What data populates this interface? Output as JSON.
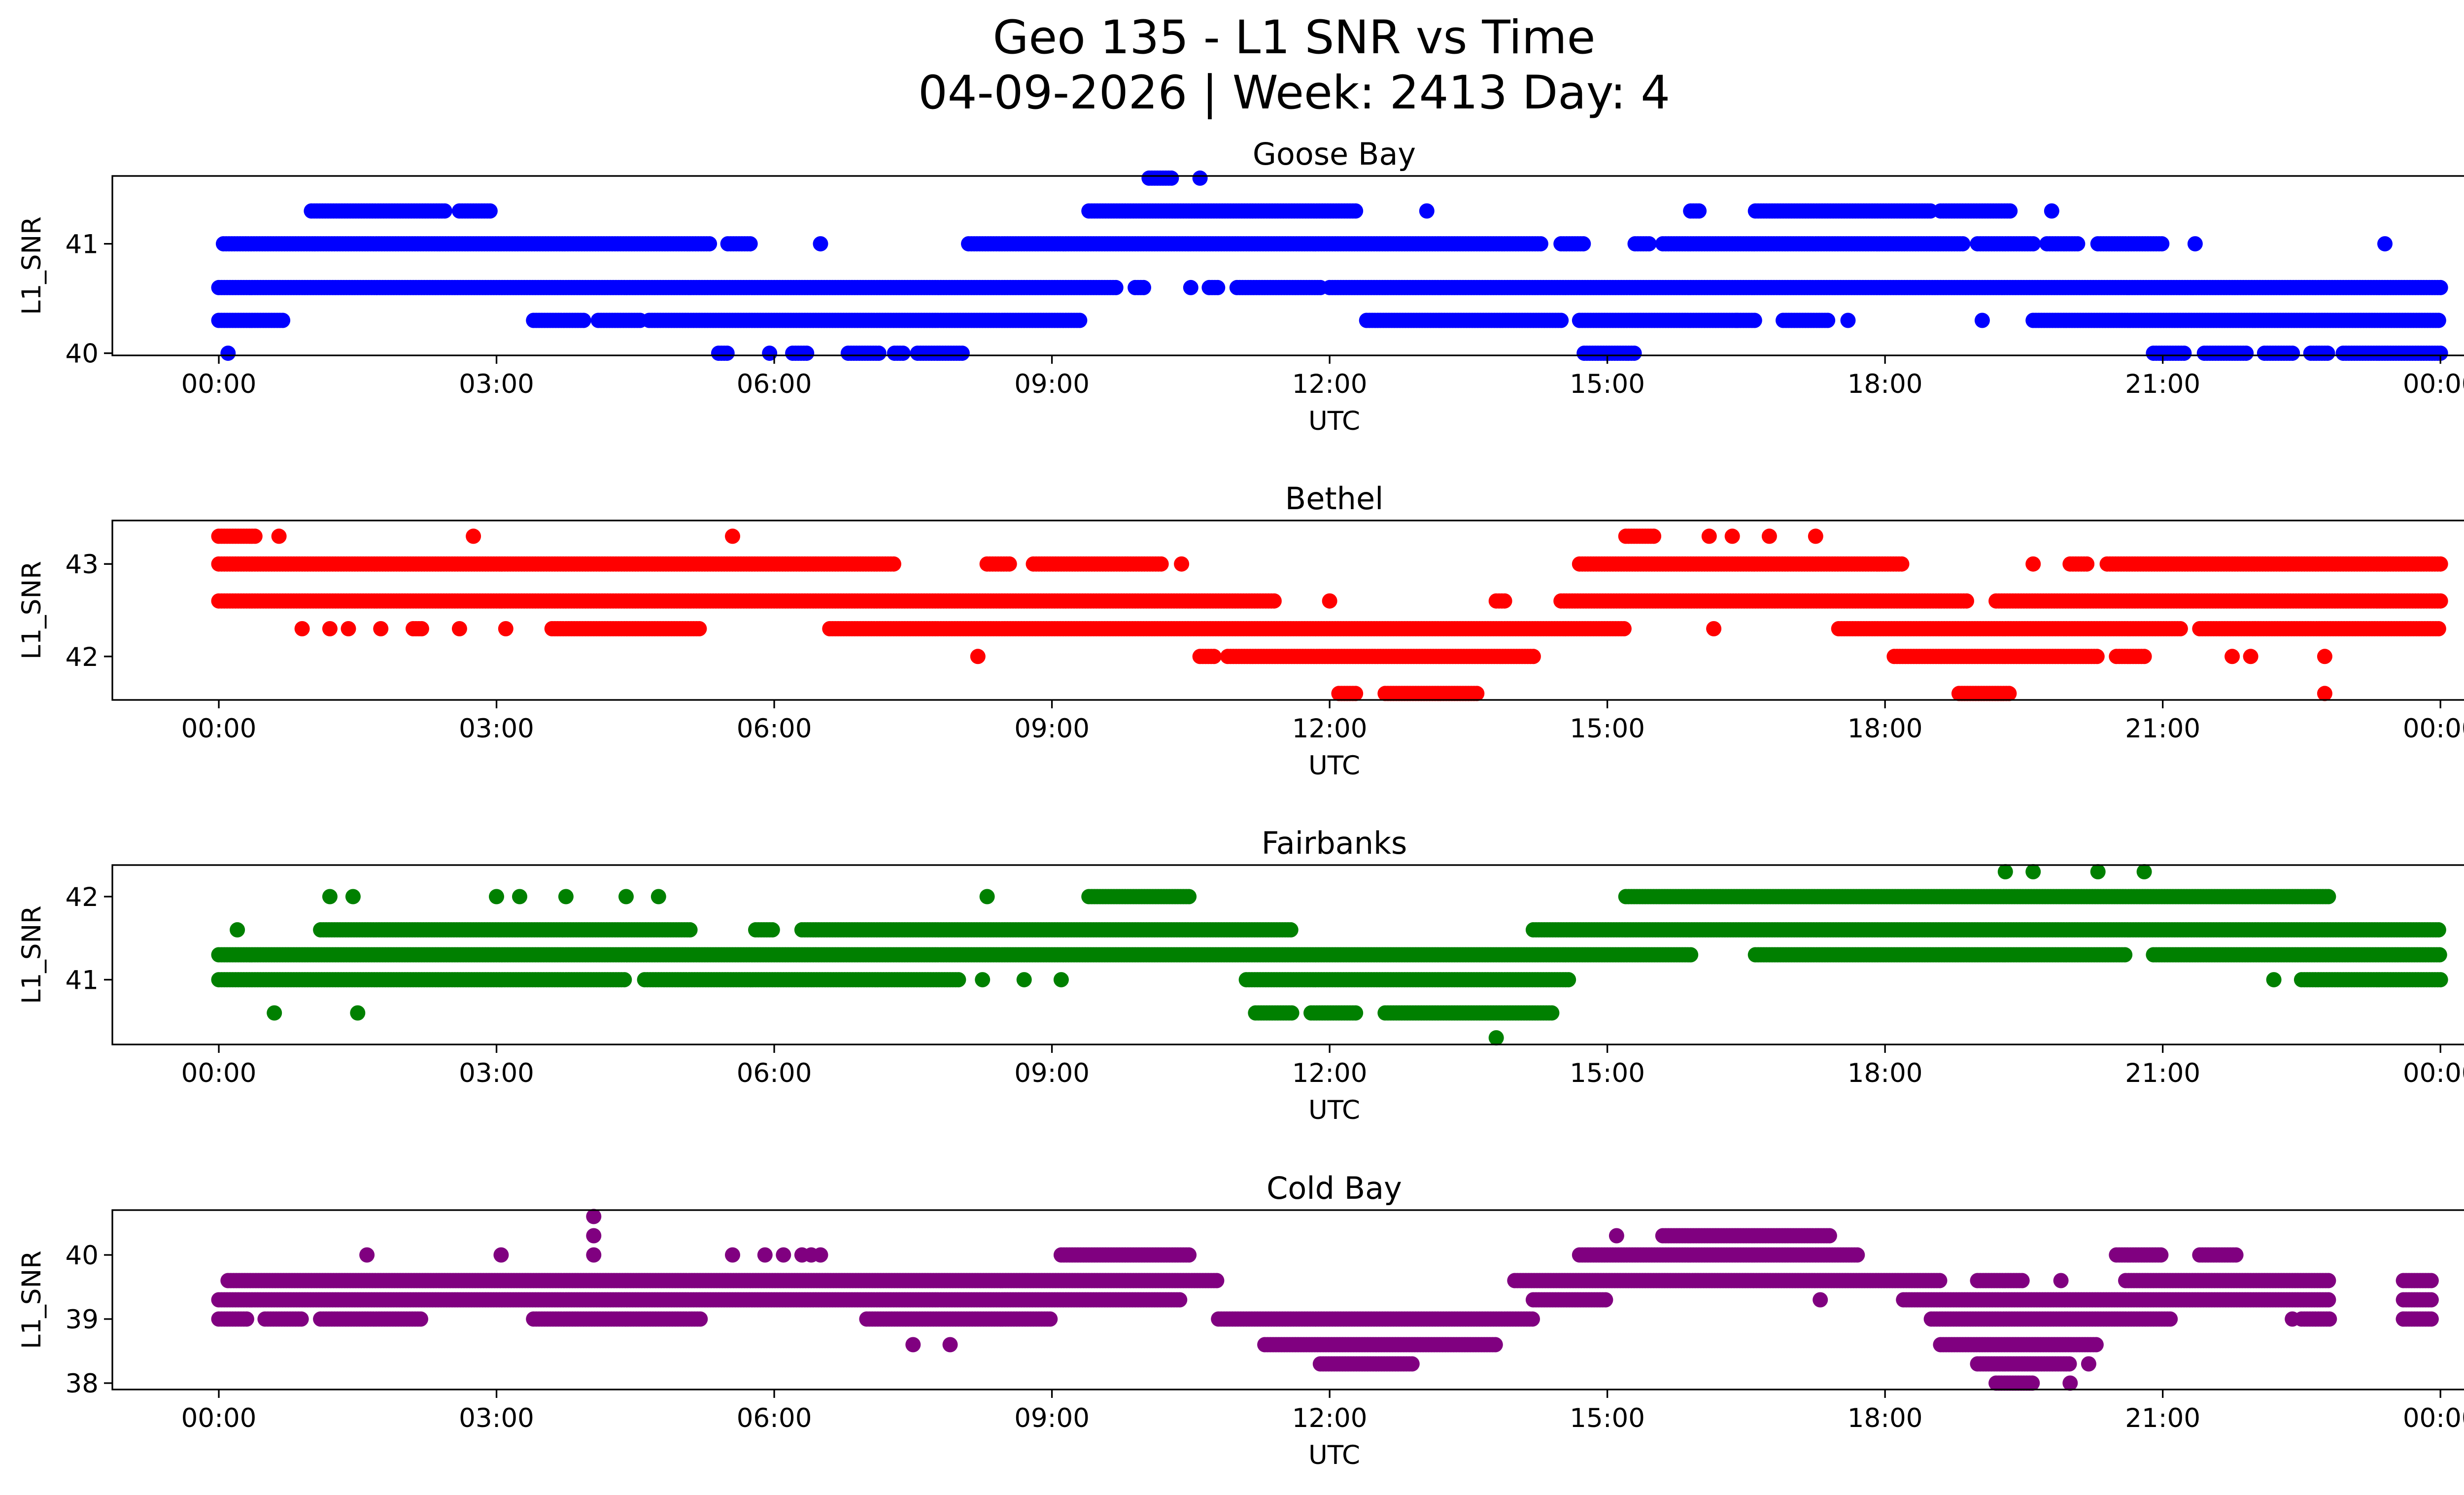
{
  "figure": {
    "title_line1": "Geo 135 - L1 SNR vs Time",
    "title_line2": "04-09-2026 | Week: 2413 Day: 4"
  },
  "chart_data": [
    {
      "type": "scatter",
      "title": "Goose Bay",
      "xlabel": "UTC",
      "ylabel": "L1_SNR",
      "color": "#0000ff",
      "xlim_hours": [
        -1.15,
        25.25
      ],
      "ylim": [
        39.98,
        41.62
      ],
      "x_ticks": [
        {
          "h": 0,
          "label": "00:00"
        },
        {
          "h": 3,
          "label": "03:00"
        },
        {
          "h": 6,
          "label": "06:00"
        },
        {
          "h": 9,
          "label": "09:00"
        },
        {
          "h": 12,
          "label": "12:00"
        },
        {
          "h": 15,
          "label": "15:00"
        },
        {
          "h": 18,
          "label": "18:00"
        },
        {
          "h": 21,
          "label": "21:00"
        },
        {
          "h": 24,
          "label": "00:00"
        }
      ],
      "y_ticks": [
        {
          "v": 40,
          "label": "40"
        },
        {
          "v": 41,
          "label": "41"
        }
      ],
      "series": [
        {
          "y": 40.6,
          "ranges": [
            [
              0.0,
              9.7
            ],
            [
              9.9,
              10.0
            ],
            [
              10.7,
              10.8
            ],
            [
              11.0,
              11.9
            ],
            [
              12.0,
              24.0
            ]
          ]
        },
        {
          "y": 41.0,
          "ranges": [
            [
              0.05,
              5.3
            ],
            [
              5.5,
              5.75
            ],
            [
              8.1,
              14.3
            ],
            [
              14.5,
              14.75
            ],
            [
              15.3,
              15.45
            ],
            [
              15.6,
              18.85
            ],
            [
              19.0,
              19.6
            ],
            [
              19.75,
              20.1
            ],
            [
              20.3,
              21.0
            ]
          ]
        },
        {
          "y": 40.3,
          "ranges": [
            [
              0.0,
              0.7
            ],
            [
              3.4,
              3.95
            ],
            [
              4.1,
              4.55
            ],
            [
              4.65,
              9.3
            ],
            [
              12.4,
              14.5
            ],
            [
              14.7,
              16.6
            ],
            [
              16.9,
              17.4
            ],
            [
              19.6,
              24.0
            ]
          ]
        },
        {
          "y": 41.3,
          "ranges": [
            [
              1.0,
              2.45
            ],
            [
              2.6,
              2.95
            ],
            [
              9.4,
              12.3
            ],
            [
              15.9,
              16.0
            ],
            [
              16.6,
              18.5
            ],
            [
              18.6,
              19.35
            ]
          ]
        },
        {
          "y": 40.0,
          "ranges": [
            [
              5.4,
              5.5
            ],
            [
              6.2,
              6.35
            ],
            [
              6.8,
              7.15
            ],
            [
              7.3,
              7.4
            ],
            [
              7.55,
              8.05
            ],
            [
              14.75,
              15.3
            ],
            [
              20.9,
              21.25
            ],
            [
              21.45,
              21.9
            ],
            [
              22.1,
              22.4
            ],
            [
              22.6,
              22.8
            ],
            [
              22.95,
              24.0
            ]
          ]
        },
        {
          "y": 41.6,
          "ranges": [
            [
              10.05,
              10.3
            ]
          ]
        }
      ],
      "singles": [
        {
          "h": 0.1,
          "y": 40.0
        },
        {
          "h": 5.95,
          "y": 40.0
        },
        {
          "h": 6.5,
          "y": 41.0
        },
        {
          "h": 10.6,
          "y": 41.6
        },
        {
          "h": 10.5,
          "y": 40.6
        },
        {
          "h": 13.05,
          "y": 41.3
        },
        {
          "h": 16.4,
          "y": 40.3
        },
        {
          "h": 17.6,
          "y": 40.3
        },
        {
          "h": 19.05,
          "y": 40.3
        },
        {
          "h": 19.8,
          "y": 41.3
        },
        {
          "h": 21.35,
          "y": 41.0
        },
        {
          "h": 23.4,
          "y": 41.0
        }
      ]
    },
    {
      "type": "scatter",
      "title": "Bethel",
      "xlabel": "UTC",
      "ylabel": "L1_SNR",
      "color": "#ff0000",
      "xlim_hours": [
        -1.15,
        25.25
      ],
      "ylim": [
        41.53,
        43.47
      ],
      "x_ticks": [
        {
          "h": 0,
          "label": "00:00"
        },
        {
          "h": 3,
          "label": "03:00"
        },
        {
          "h": 6,
          "label": "06:00"
        },
        {
          "h": 9,
          "label": "09:00"
        },
        {
          "h": 12,
          "label": "12:00"
        },
        {
          "h": 15,
          "label": "15:00"
        },
        {
          "h": 18,
          "label": "18:00"
        },
        {
          "h": 21,
          "label": "21:00"
        },
        {
          "h": 24,
          "label": "00:00"
        }
      ],
      "y_ticks": [
        {
          "v": 42,
          "label": "42"
        },
        {
          "v": 43,
          "label": "43"
        }
      ],
      "series": [
        {
          "y": 42.6,
          "ranges": [
            [
              0.0,
              11.4
            ],
            [
              13.8,
              13.9
            ],
            [
              14.5,
              18.9
            ],
            [
              19.2,
              24.0
            ]
          ]
        },
        {
          "y": 43.0,
          "ranges": [
            [
              0.0,
              7.3
            ],
            [
              8.3,
              8.55
            ],
            [
              8.8,
              10.2
            ],
            [
              14.7,
              18.2
            ],
            [
              20.0,
              20.2
            ],
            [
              20.4,
              24.0
            ]
          ]
        },
        {
          "y": 42.3,
          "ranges": [
            [
              2.1,
              2.2
            ],
            [
              3.6,
              5.2
            ],
            [
              6.6,
              15.2
            ],
            [
              17.5,
              21.2
            ],
            [
              21.4,
              24.0
            ]
          ]
        },
        {
          "y": 42.0,
          "ranges": [
            [
              10.6,
              10.75
            ],
            [
              10.9,
              14.2
            ],
            [
              18.1,
              20.3
            ],
            [
              20.5,
              20.8
            ]
          ]
        },
        {
          "y": 41.6,
          "ranges": [
            [
              12.1,
              12.3
            ],
            [
              12.6,
              13.6
            ],
            [
              18.8,
              19.35
            ]
          ]
        },
        {
          "y": 43.3,
          "ranges": [
            [
              0.0,
              0.4
            ],
            [
              15.2,
              15.5
            ]
          ]
        }
      ],
      "singles": [
        {
          "h": 0.9,
          "y": 42.3
        },
        {
          "h": 1.2,
          "y": 42.3
        },
        {
          "h": 1.4,
          "y": 42.3
        },
        {
          "h": 1.75,
          "y": 42.3
        },
        {
          "h": 2.6,
          "y": 42.3
        },
        {
          "h": 3.1,
          "y": 42.3
        },
        {
          "h": 0.65,
          "y": 43.3
        },
        {
          "h": 2.75,
          "y": 43.3
        },
        {
          "h": 5.55,
          "y": 43.3
        },
        {
          "h": 16.1,
          "y": 43.3
        },
        {
          "h": 16.35,
          "y": 43.3
        },
        {
          "h": 16.75,
          "y": 43.3
        },
        {
          "h": 17.25,
          "y": 43.3
        },
        {
          "h": 8.2,
          "y": 42.0
        },
        {
          "h": 10.4,
          "y": 43.0
        },
        {
          "h": 12.0,
          "y": 42.6
        },
        {
          "h": 16.15,
          "y": 42.3
        },
        {
          "h": 19.6,
          "y": 43.0
        },
        {
          "h": 21.75,
          "y": 42.0
        },
        {
          "h": 21.95,
          "y": 42.0
        },
        {
          "h": 22.75,
          "y": 42.0
        },
        {
          "h": 22.75,
          "y": 41.6
        }
      ]
    },
    {
      "type": "scatter",
      "title": "Fairbanks",
      "xlabel": "UTC",
      "ylabel": "L1_SNR",
      "color": "#008000",
      "xlim_hours": [
        -1.15,
        25.25
      ],
      "ylim": [
        40.22,
        42.38
      ],
      "x_ticks": [
        {
          "h": 0,
          "label": "00:00"
        },
        {
          "h": 3,
          "label": "03:00"
        },
        {
          "h": 6,
          "label": "06:00"
        },
        {
          "h": 9,
          "label": "09:00"
        },
        {
          "h": 12,
          "label": "12:00"
        },
        {
          "h": 15,
          "label": "15:00"
        },
        {
          "h": 18,
          "label": "18:00"
        },
        {
          "h": 21,
          "label": "21:00"
        },
        {
          "h": 24,
          "label": "00:00"
        }
      ],
      "y_ticks": [
        {
          "v": 41,
          "label": "41"
        },
        {
          "v": 42,
          "label": "42"
        }
      ],
      "series": [
        {
          "y": 41.3,
          "ranges": [
            [
              0.0,
              15.9
            ],
            [
              16.6,
              20.6
            ],
            [
              20.9,
              24.0
            ]
          ]
        },
        {
          "y": 41.0,
          "ranges": [
            [
              0.0,
              4.4
            ],
            [
              4.6,
              8.0
            ],
            [
              11.1,
              14.6
            ],
            [
              22.5,
              24.0
            ]
          ]
        },
        {
          "y": 41.6,
          "ranges": [
            [
              1.1,
              5.1
            ],
            [
              5.8,
              6.0
            ],
            [
              6.3,
              11.6
            ],
            [
              14.2,
              24.0
            ]
          ]
        },
        {
          "y": 42.0,
          "ranges": [
            [
              9.4,
              10.5
            ],
            [
              15.2,
              22.8
            ]
          ]
        },
        {
          "y": 40.6,
          "ranges": [
            [
              11.2,
              11.6
            ],
            [
              11.8,
              12.3
            ],
            [
              12.6,
              14.4
            ]
          ]
        }
      ],
      "singles": [
        {
          "h": 0.6,
          "y": 40.6
        },
        {
          "h": 1.5,
          "y": 40.6
        },
        {
          "h": 0.2,
          "y": 41.6
        },
        {
          "h": 1.2,
          "y": 42.0
        },
        {
          "h": 1.45,
          "y": 42.0
        },
        {
          "h": 3.0,
          "y": 42.0
        },
        {
          "h": 3.25,
          "y": 42.0
        },
        {
          "h": 3.75,
          "y": 42.0
        },
        {
          "h": 4.4,
          "y": 42.0
        },
        {
          "h": 4.75,
          "y": 42.0
        },
        {
          "h": 8.3,
          "y": 42.0
        },
        {
          "h": 8.25,
          "y": 41.0
        },
        {
          "h": 8.7,
          "y": 41.0
        },
        {
          "h": 9.1,
          "y": 41.0
        },
        {
          "h": 13.8,
          "y": 40.3
        },
        {
          "h": 19.3,
          "y": 42.3
        },
        {
          "h": 19.6,
          "y": 42.3
        },
        {
          "h": 20.3,
          "y": 42.3
        },
        {
          "h": 20.8,
          "y": 42.3
        },
        {
          "h": 22.2,
          "y": 41.0
        }
      ]
    },
    {
      "type": "scatter",
      "title": "Cold Bay",
      "xlabel": "UTC",
      "ylabel": "L1_SNR",
      "color": "#800080",
      "xlim_hours": [
        -1.15,
        25.25
      ],
      "ylim": [
        37.9,
        40.7
      ],
      "x_ticks": [
        {
          "h": 0,
          "label": "00:00"
        },
        {
          "h": 3,
          "label": "03:00"
        },
        {
          "h": 6,
          "label": "06:00"
        },
        {
          "h": 9,
          "label": "09:00"
        },
        {
          "h": 12,
          "label": "12:00"
        },
        {
          "h": 15,
          "label": "15:00"
        },
        {
          "h": 18,
          "label": "18:00"
        },
        {
          "h": 21,
          "label": "21:00"
        },
        {
          "h": 24,
          "label": "00:00"
        }
      ],
      "y_ticks": [
        {
          "v": 38,
          "label": "38"
        },
        {
          "v": 39,
          "label": "39"
        },
        {
          "v": 40,
          "label": "40"
        }
      ],
      "series": [
        {
          "y": 39.3,
          "ranges": [
            [
              0.0,
              10.4
            ],
            [
              14.2,
              15.0
            ],
            [
              18.2,
              22.8
            ],
            [
              23.6,
              23.9
            ]
          ]
        },
        {
          "y": 39.6,
          "ranges": [
            [
              0.1,
              10.8
            ],
            [
              14.0,
              18.6
            ],
            [
              19.0,
              19.5
            ],
            [
              20.6,
              22.8
            ],
            [
              23.6,
              23.9
            ]
          ]
        },
        {
          "y": 39.0,
          "ranges": [
            [
              0.0,
              0.3
            ],
            [
              0.5,
              0.9
            ],
            [
              1.1,
              2.2
            ],
            [
              3.4,
              5.2
            ],
            [
              7.0,
              9.0
            ],
            [
              10.8,
              14.2
            ],
            [
              18.5,
              21.1
            ],
            [
              22.5,
              22.8
            ],
            [
              23.6,
              23.9
            ]
          ]
        },
        {
          "y": 40.0,
          "ranges": [
            [
              9.1,
              10.5
            ],
            [
              14.7,
              17.7
            ],
            [
              20.5,
              21.0
            ],
            [
              21.4,
              21.8
            ]
          ]
        },
        {
          "y": 38.6,
          "ranges": [
            [
              11.3,
              13.8
            ],
            [
              18.6,
              20.3
            ]
          ]
        },
        {
          "y": 38.3,
          "ranges": [
            [
              11.9,
              12.9
            ],
            [
              19.0,
              20.0
            ]
          ]
        },
        {
          "y": 40.3,
          "ranges": [
            [
              15.6,
              17.4
            ]
          ]
        },
        {
          "y": 38.0,
          "ranges": [
            [
              19.2,
              19.6
            ]
          ]
        }
      ],
      "singles": [
        {
          "h": 1.6,
          "y": 40.0
        },
        {
          "h": 3.05,
          "y": 40.0
        },
        {
          "h": 4.05,
          "y": 40.0
        },
        {
          "h": 4.05,
          "y": 40.3
        },
        {
          "h": 4.05,
          "y": 40.6
        },
        {
          "h": 5.55,
          "y": 40.0
        },
        {
          "h": 5.9,
          "y": 40.0
        },
        {
          "h": 6.1,
          "y": 40.0
        },
        {
          "h": 6.3,
          "y": 40.0
        },
        {
          "h": 6.4,
          "y": 40.0
        },
        {
          "h": 6.5,
          "y": 40.0
        },
        {
          "h": 7.5,
          "y": 38.6
        },
        {
          "h": 7.9,
          "y": 38.6
        },
        {
          "h": 15.1,
          "y": 40.3
        },
        {
          "h": 17.3,
          "y": 39.3
        },
        {
          "h": 19.9,
          "y": 39.6
        },
        {
          "h": 20.2,
          "y": 38.3
        },
        {
          "h": 22.4,
          "y": 39.0
        },
        {
          "h": 23.6,
          "y": 39.0
        },
        {
          "h": 20.0,
          "y": 38.0
        }
      ]
    }
  ]
}
